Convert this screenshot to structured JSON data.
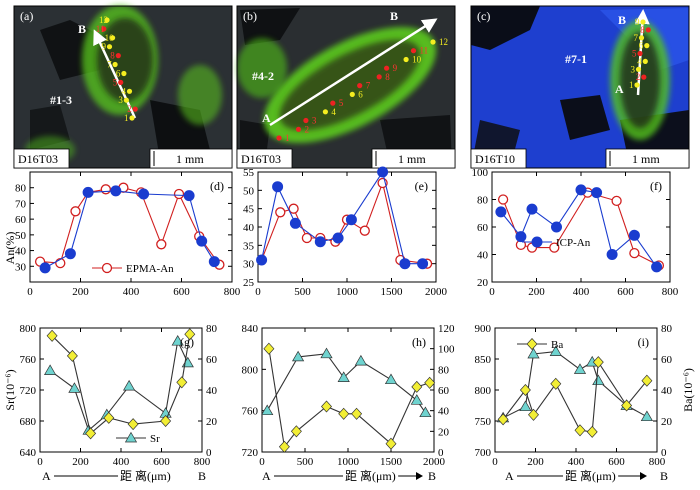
{
  "images": [
    {
      "panel": "(a)",
      "sample": "D16T03",
      "grain": "#1-3",
      "scale": "1 mm",
      "start": "",
      "end": "B",
      "points": [
        "1",
        "2",
        "3",
        "4",
        "5",
        "6",
        "7",
        "8",
        "9",
        "10",
        "11",
        "12"
      ]
    },
    {
      "panel": "(b)",
      "sample": "D16T03",
      "grain": "#4-2",
      "scale": "1 mm",
      "start": "A",
      "end": "B",
      "points": [
        "1",
        "2",
        "3",
        "4",
        "5",
        "6",
        "7",
        "8",
        "9",
        "10",
        "11",
        "12"
      ]
    },
    {
      "panel": "(c)",
      "sample": "D16T10",
      "grain": "#7-1",
      "scale": "1 mm",
      "start": "A",
      "end": "B",
      "points": [
        "1",
        "2",
        "3",
        "4",
        "5",
        "6",
        "7",
        "8",
        "9"
      ]
    }
  ],
  "colors": {
    "epma": "#d11f1f",
    "icp": "#1a3ccf",
    "sr": "#6fd3cf",
    "ba": "#f2ee35",
    "epma_fill": "#ffffff",
    "line": "#333333",
    "green": "#5fd41a",
    "blue": "#1e4fe0",
    "dark": "#202428"
  },
  "xlabel": {
    "start": "A",
    "text": "距 离(μm)",
    "end": "B"
  },
  "chart_data": [
    {
      "type": "line",
      "panel": "(d)",
      "ylabel": "An(%)",
      "xlim": [
        0,
        800
      ],
      "ylim": [
        20,
        90
      ],
      "xticks": [
        0,
        200,
        400,
        600,
        800
      ],
      "yticks": [
        30,
        40,
        50,
        60,
        70,
        80
      ],
      "legend": "EPMA-An",
      "series": [
        {
          "name": "EPMA-An",
          "marker": "open-circle",
          "x": [
            40,
            120,
            180,
            230,
            300,
            370,
            440,
            520,
            590,
            670,
            750
          ],
          "y": [
            33,
            32,
            65,
            77,
            79,
            80,
            77,
            44,
            76,
            49,
            31
          ]
        },
        {
          "name": "ICP-An",
          "marker": "filled-circle",
          "x": [
            60,
            160,
            230,
            340,
            450,
            630,
            680,
            730
          ],
          "y": [
            29,
            38,
            77,
            78,
            76,
            75,
            46,
            33
          ]
        }
      ]
    },
    {
      "type": "line",
      "panel": "(e)",
      "ylabel": "",
      "xlim": [
        0,
        2000
      ],
      "ylim": [
        25,
        55
      ],
      "xticks": [
        0,
        500,
        1000,
        1500,
        2000
      ],
      "yticks": [
        25,
        30,
        35,
        40,
        45,
        50,
        55
      ],
      "series": [
        {
          "name": "EPMA-An",
          "marker": "open-circle",
          "x": [
            40,
            250,
            400,
            550,
            700,
            870,
            1000,
            1200,
            1400,
            1600,
            1900
          ],
          "y": [
            31,
            44,
            45,
            37,
            37,
            36,
            42,
            39,
            52,
            31,
            30
          ]
        },
        {
          "name": "ICP-An",
          "marker": "filled-circle",
          "x": [
            40,
            220,
            420,
            700,
            900,
            1050,
            1400,
            1650,
            1850
          ],
          "y": [
            31,
            51,
            41,
            36,
            37,
            42,
            55,
            30,
            30
          ]
        }
      ]
    },
    {
      "type": "line",
      "panel": "(f)",
      "ylabel": "",
      "xlim": [
        0,
        800
      ],
      "ylim": [
        20,
        100
      ],
      "xticks": [
        0,
        200,
        400,
        600,
        800
      ],
      "yticks": [
        20,
        40,
        60,
        80,
        100
      ],
      "legend": "ICP-An",
      "series": [
        {
          "name": "EPMA-An",
          "marker": "open-circle",
          "x": [
            50,
            130,
            180,
            280,
            430,
            560,
            640,
            750
          ],
          "y": [
            80,
            47,
            45,
            45,
            85,
            79,
            41,
            32
          ]
        },
        {
          "name": "ICP-An",
          "marker": "filled-circle",
          "x": [
            40,
            130,
            180,
            290,
            400,
            470,
            540,
            640,
            740
          ],
          "y": [
            71,
            53,
            73,
            60,
            87,
            85,
            40,
            54,
            31
          ]
        }
      ]
    },
    {
      "type": "line",
      "panel": "(g)",
      "ylabel": "Sr(10⁻⁶)",
      "xlim": [
        0,
        800
      ],
      "ylim": [
        640,
        800
      ],
      "y2lim": [
        0,
        80
      ],
      "xticks": [
        0,
        200,
        400,
        600,
        800
      ],
      "yticks": [
        640,
        680,
        720,
        760,
        800
      ],
      "y2ticks": [
        0,
        20,
        40,
        60,
        80
      ],
      "legend": "Sr",
      "series": [
        {
          "name": "Sr",
          "marker": "triangle",
          "axis": "left",
          "x": [
            50,
            170,
            240,
            330,
            440,
            620,
            680,
            730
          ],
          "y": [
            745,
            722,
            668,
            688,
            725,
            690,
            783,
            755
          ]
        },
        {
          "name": "Ba",
          "marker": "diamond",
          "axis": "right",
          "x": [
            60,
            160,
            250,
            340,
            460,
            620,
            700,
            740
          ],
          "y": [
            75,
            62,
            12,
            22,
            18,
            20,
            45,
            76
          ]
        }
      ]
    },
    {
      "type": "line",
      "panel": "(h)",
      "ylabel": "",
      "xlim": [
        0,
        2000
      ],
      "ylim": [
        720,
        840
      ],
      "y2lim": [
        0,
        120
      ],
      "xticks": [
        0,
        500,
        1000,
        1500,
        2000
      ],
      "yticks": [
        720,
        760,
        800,
        840
      ],
      "y2ticks": [
        0,
        20,
        40,
        60,
        80,
        100,
        120
      ],
      "series": [
        {
          "name": "Sr",
          "marker": "triangle",
          "axis": "left",
          "x": [
            60,
            420,
            750,
            950,
            1150,
            1500,
            1800,
            1900
          ],
          "y": [
            760,
            812,
            815,
            792,
            808,
            790,
            770,
            758
          ]
        },
        {
          "name": "Ba",
          "marker": "diamond",
          "axis": "right",
          "x": [
            80,
            260,
            400,
            750,
            950,
            1100,
            1500,
            1800,
            1950
          ],
          "y": [
            100,
            5,
            20,
            44,
            37,
            37,
            8,
            63,
            67
          ]
        }
      ]
    },
    {
      "type": "line",
      "panel": "(i)",
      "ylabel": "",
      "xlim": [
        0,
        800
      ],
      "ylim": [
        700,
        900
      ],
      "y2lim": [
        0,
        80
      ],
      "xticks": [
        0,
        200,
        400,
        600,
        800
      ],
      "yticks": [
        700,
        750,
        800,
        850,
        900
      ],
      "y2ticks": [
        0,
        20,
        40,
        60,
        80
      ],
      "y2label": "Ba(10⁻⁶)",
      "legend": "Ba",
      "series": [
        {
          "name": "Sr",
          "marker": "triangle",
          "axis": "left",
          "x": [
            40,
            150,
            190,
            300,
            420,
            480,
            510,
            650,
            750
          ],
          "y": [
            755,
            773,
            858,
            862,
            833,
            845,
            815,
            775,
            757
          ]
        },
        {
          "name": "Ba",
          "marker": "diamond",
          "axis": "right",
          "x": [
            40,
            150,
            190,
            300,
            420,
            480,
            510,
            650,
            750
          ],
          "y": [
            21,
            40,
            24,
            44,
            14,
            13,
            58,
            30,
            46
          ]
        }
      ]
    }
  ]
}
